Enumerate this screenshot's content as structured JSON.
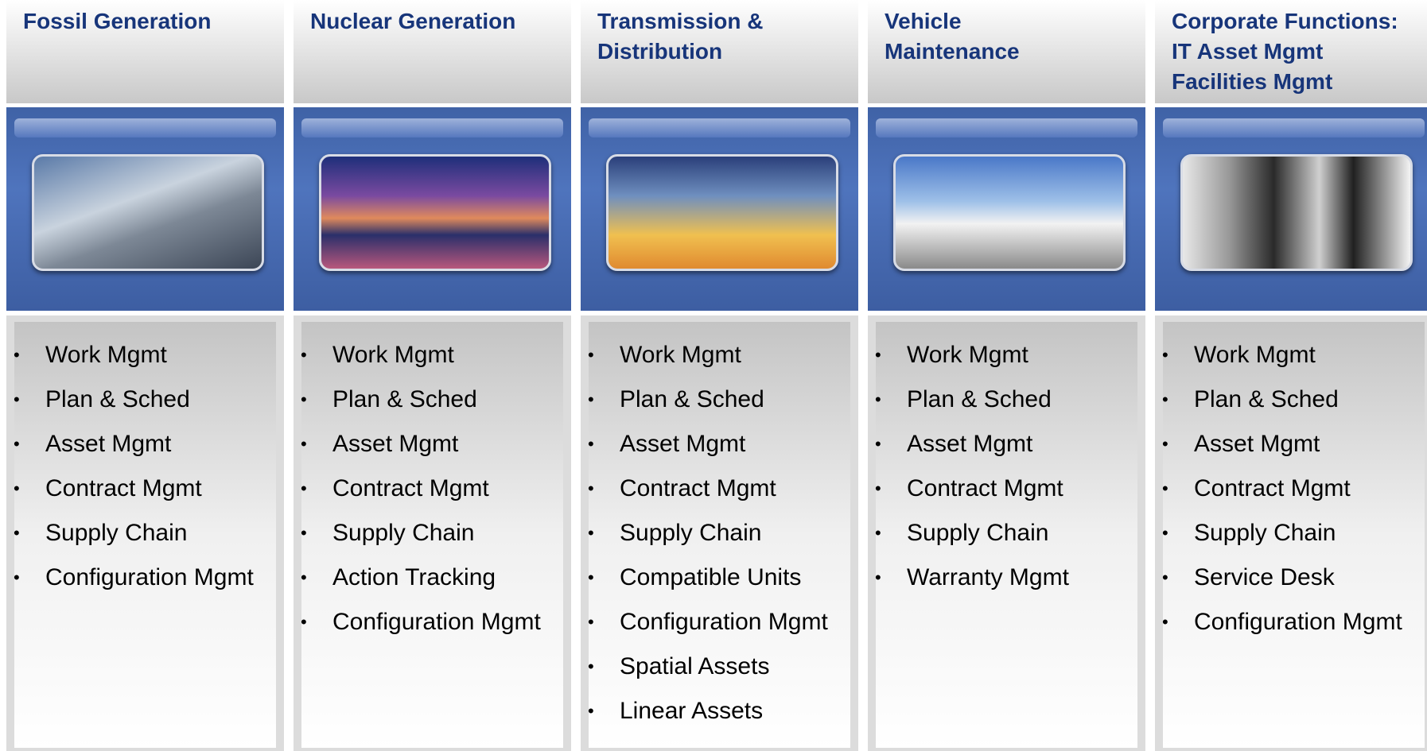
{
  "columns": [
    {
      "title": [
        "Fossil Generation"
      ],
      "items": [
        "Work Mgmt",
        "Plan & Sched",
        "Asset Mgmt",
        "Contract Mgmt",
        "Supply Chain",
        "Configuration Mgmt"
      ]
    },
    {
      "title": [
        "Nuclear Generation"
      ],
      "items": [
        "Work Mgmt",
        "Plan & Sched",
        "Asset Mgmt",
        "Contract Mgmt",
        "Supply Chain",
        "Action Tracking",
        "Configuration Mgmt"
      ]
    },
    {
      "title": [
        "Transmission &",
        "Distribution"
      ],
      "items": [
        "Work Mgmt",
        "Plan & Sched",
        "Asset Mgmt",
        "Contract Mgmt",
        "Supply Chain",
        "Compatible Units",
        "Configuration Mgmt",
        "Spatial Assets",
        "Linear Assets"
      ]
    },
    {
      "title": [
        "Vehicle",
        "Maintenance"
      ],
      "items": [
        "Work Mgmt",
        "Plan & Sched",
        "Asset Mgmt",
        "Contract Mgmt",
        "Supply Chain",
        "Warranty Mgmt"
      ]
    },
    {
      "title": [
        "Corporate Functions:",
        "IT Asset Mgmt",
        "Facilities Mgmt"
      ],
      "items": [
        "Work Mgmt",
        "Plan & Sched",
        "Asset Mgmt",
        "Contract Mgmt",
        "Supply Chain",
        "Service Desk",
        "Configuration Mgmt"
      ]
    }
  ]
}
